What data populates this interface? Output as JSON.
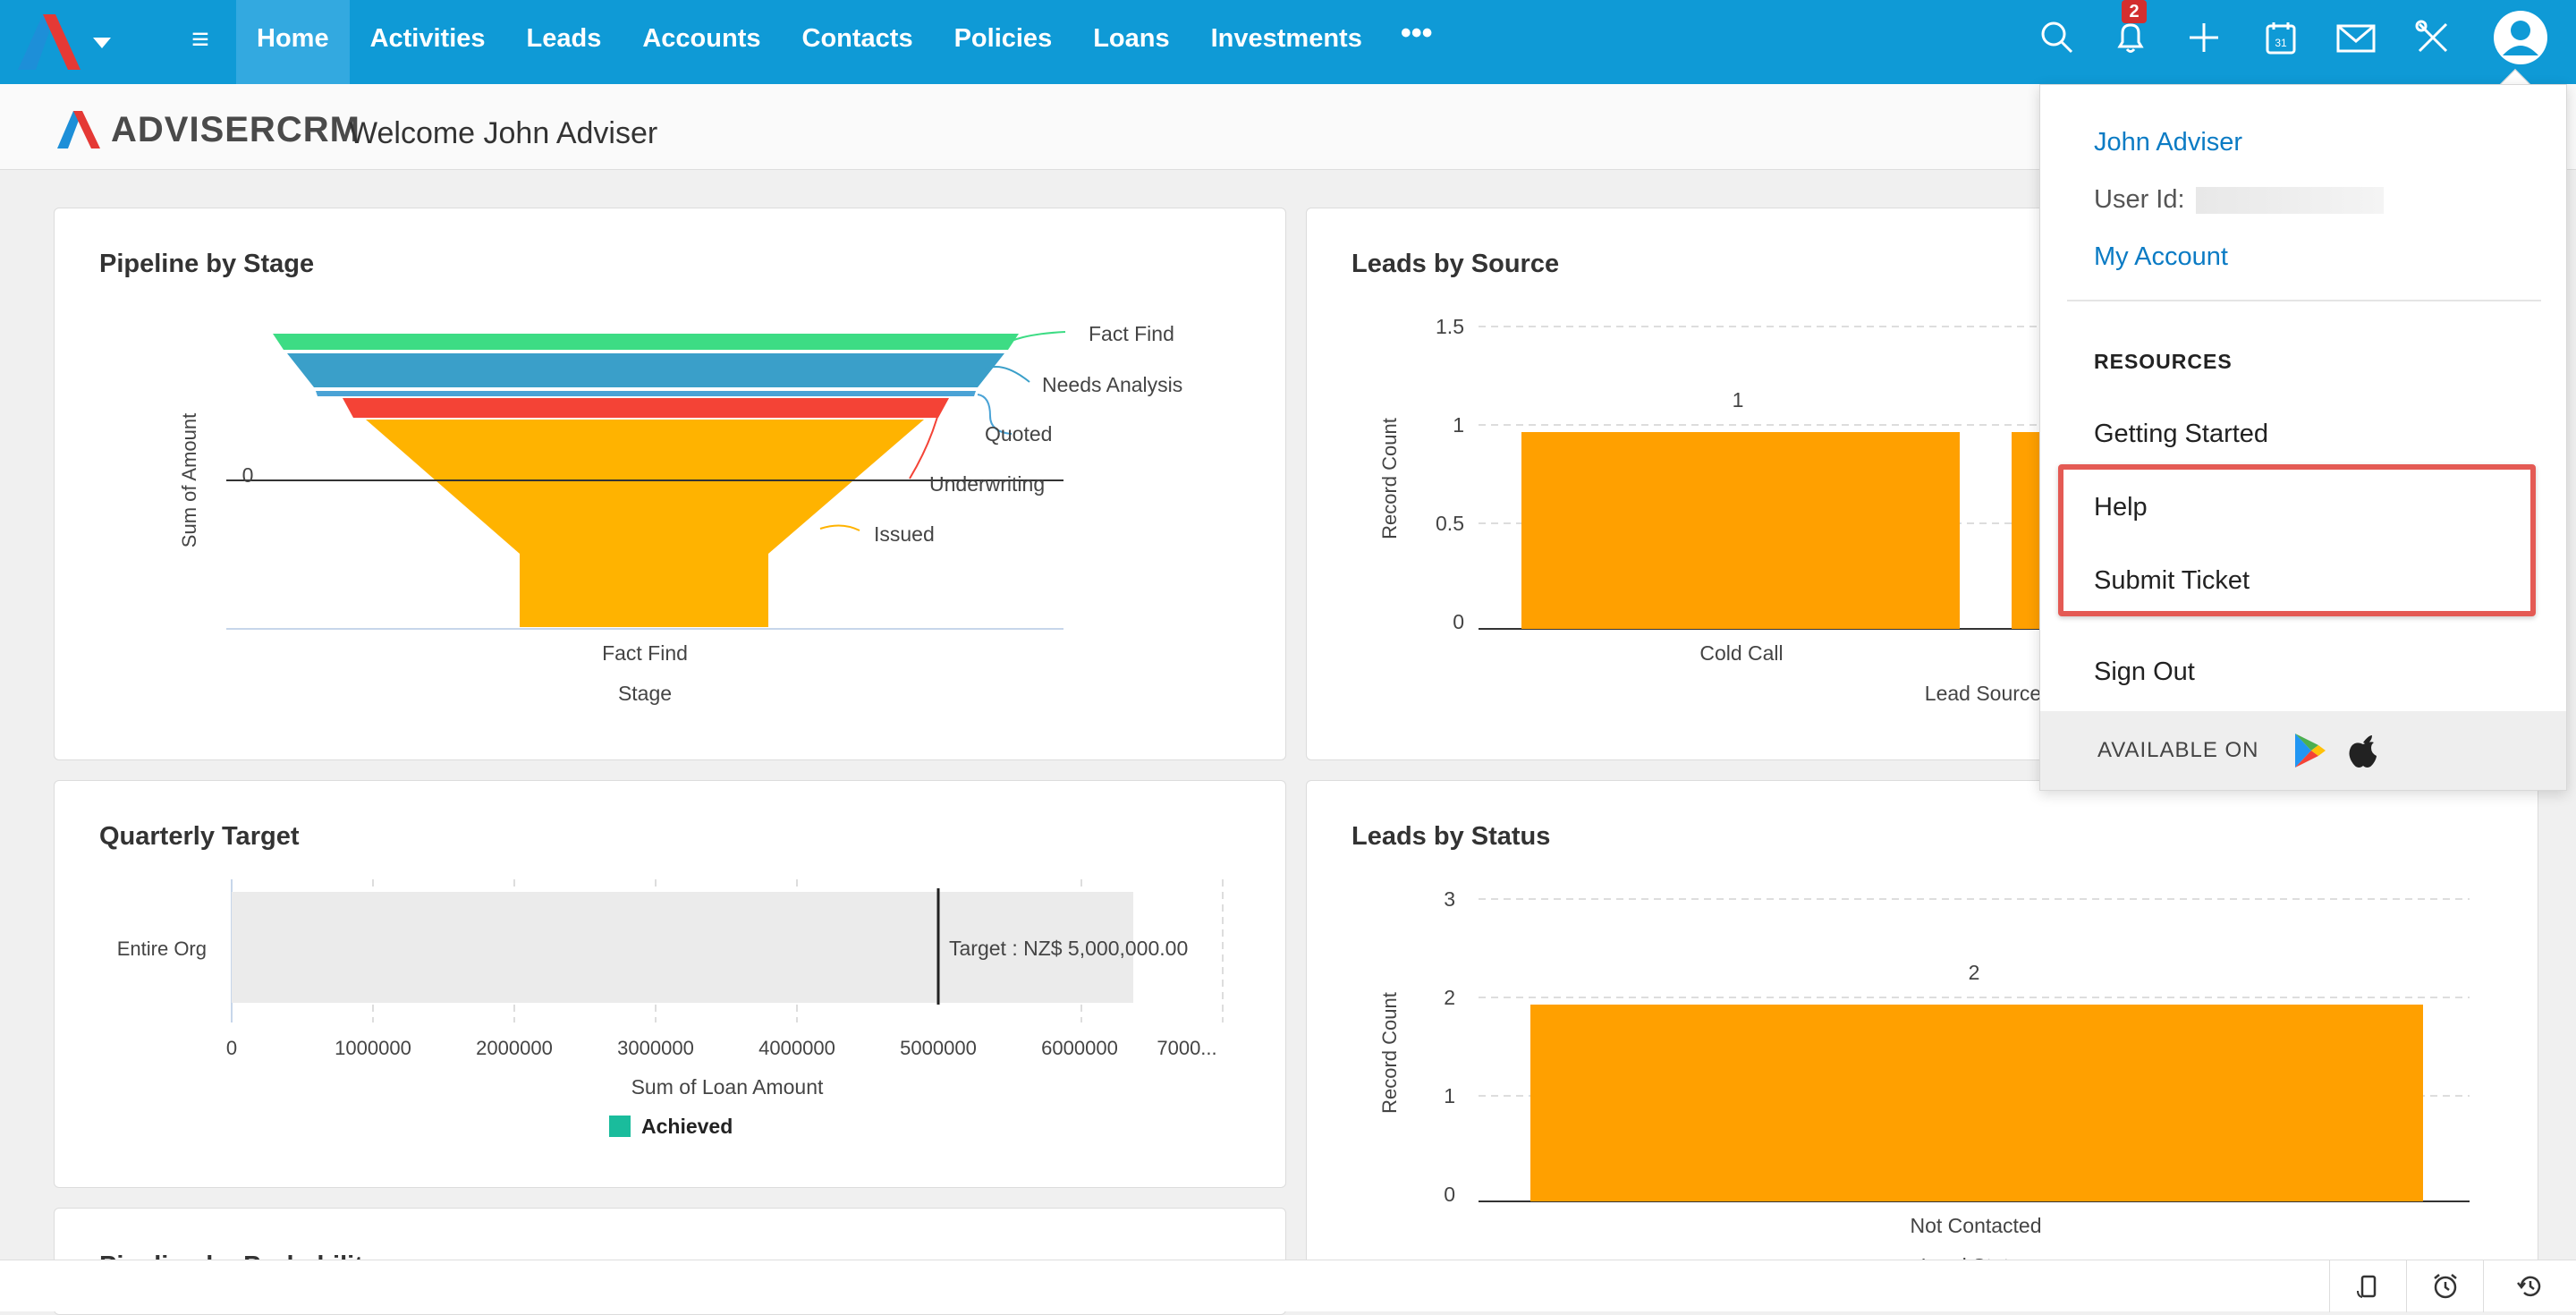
{
  "nav": {
    "items": [
      "Home",
      "Activities",
      "Leads",
      "Accounts",
      "Contacts",
      "Policies",
      "Loans",
      "Investments"
    ],
    "more": "•••",
    "notification_count": "2"
  },
  "brand": {
    "name": "ADVISERCRM"
  },
  "header": {
    "welcome": "Welcome John Adviser"
  },
  "pipeline": {
    "title": "Pipeline by Stage",
    "ylabel": "Sum of Amount",
    "ytick": "0",
    "xtick": "Fact Find",
    "xlabel": "Stage",
    "stages": [
      "Fact Find",
      "Needs Analysis",
      "Quoted",
      "Underwriting",
      "Issued"
    ]
  },
  "leads_source": {
    "title": "Leads by Source",
    "ylabel": "Record Count",
    "yticks": [
      "1.5",
      "1",
      "0.5",
      "0"
    ],
    "bar_label": "1",
    "xtick": "Cold Call",
    "xlabel": "Lead Source"
  },
  "quarterly": {
    "title": "Quarterly Target",
    "row_label": "Entire Org",
    "target_label": "Target : NZ$ 5,000,000.00",
    "xticks": [
      "0",
      "1000000",
      "2000000",
      "3000000",
      "4000000",
      "5000000",
      "6000000",
      "7000..."
    ],
    "xlabel": "Sum of Loan Amount",
    "legend": "Achieved"
  },
  "leads_status": {
    "title": "Leads by Status",
    "ylabel": "Record Count",
    "yticks": [
      "3",
      "2",
      "1",
      "0"
    ],
    "bar_label": "2",
    "xtick": "Not Contacted",
    "xlabel": "Lead Status"
  },
  "next_card": {
    "title": "Pipeline by Probability"
  },
  "chart_data": [
    {
      "type": "funnel",
      "title": "Pipeline by Stage",
      "categories": [
        "Fact Find",
        "Needs Analysis",
        "Quoted",
        "Underwriting",
        "Issued"
      ],
      "xlabel": "Stage",
      "ylabel": "Sum of Amount"
    },
    {
      "type": "bar",
      "title": "Leads by Source",
      "categories": [
        "Cold Call"
      ],
      "values": [
        1
      ],
      "xlabel": "Lead Source",
      "ylabel": "Record Count",
      "ylim": [
        0,
        1.5
      ]
    },
    {
      "type": "bar",
      "title": "Quarterly Target",
      "categories": [
        "Entire Org"
      ],
      "values": [
        6000000
      ],
      "target": 5000000,
      "xlabel": "Sum of Loan Amount",
      "xlim": [
        0,
        7000000
      ]
    },
    {
      "type": "bar",
      "title": "Leads by Status",
      "categories": [
        "Not Contacted"
      ],
      "values": [
        2
      ],
      "xlabel": "Lead Status",
      "ylabel": "Record Count",
      "ylim": [
        0,
        3
      ]
    }
  ],
  "user_menu": {
    "name": "John Adviser",
    "user_id_label": "User Id:",
    "my_account": "My Account",
    "resources_heading": "RESOURCES",
    "getting_started": "Getting Started",
    "help": "Help",
    "submit_ticket": "Submit Ticket",
    "sign_out": "Sign Out",
    "available_on": "AVAILABLE ON"
  },
  "colors": {
    "topbar": "#0f9ad6",
    "bar": "#ffa000",
    "achieved": "#1abc9c",
    "highlight": "#e45a54"
  }
}
